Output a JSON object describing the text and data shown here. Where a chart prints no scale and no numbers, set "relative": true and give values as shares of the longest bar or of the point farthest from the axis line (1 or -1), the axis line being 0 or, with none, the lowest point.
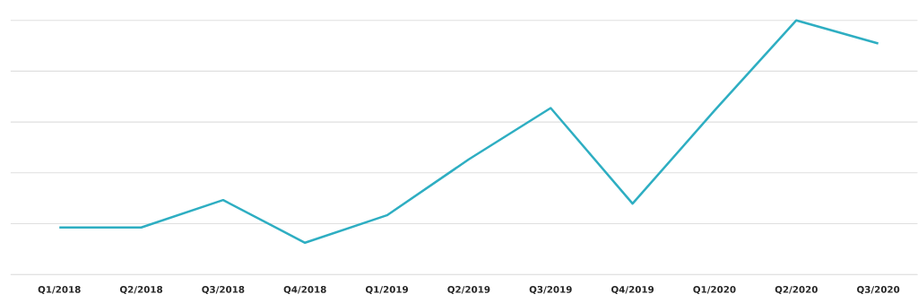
{
  "chart_data": {
    "type": "line",
    "relative": true,
    "grid": "y",
    "marker": "none",
    "line_style": "solid",
    "categories": [
      "Q1/2018",
      "Q2/2018",
      "Q3/2018",
      "Q4/2018",
      "Q1/2019",
      "Q2/2019",
      "Q3/2019",
      "Q4/2019",
      "Q1/2020",
      "Q2/2020",
      "Q3/2020"
    ],
    "series": [
      {
        "color": "#2eaec2",
        "values": [
          0.185,
          0.185,
          0.293,
          0.125,
          0.233,
          0.453,
          0.655,
          0.279,
          0.645,
          1,
          0.909
        ]
      }
    ]
  }
}
